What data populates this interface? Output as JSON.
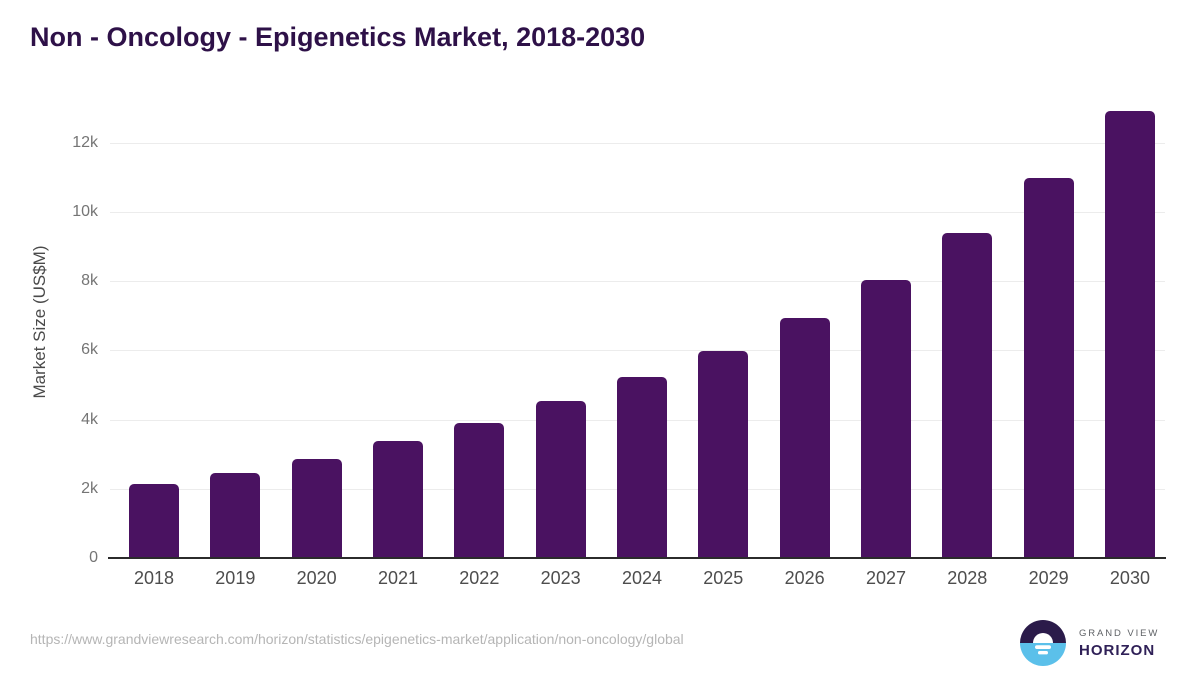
{
  "header": {
    "title": "Non - Oncology - Epigenetics Market, 2018-2030"
  },
  "chart_data": {
    "type": "bar",
    "title": "Non - Oncology - Epigenetics Market, 2018-2030",
    "categories": [
      "2018",
      "2019",
      "2020",
      "2021",
      "2022",
      "2023",
      "2024",
      "2025",
      "2026",
      "2027",
      "2028",
      "2029",
      "2030"
    ],
    "values": [
      2150,
      2470,
      2860,
      3370,
      3910,
      4530,
      5220,
      5990,
      6940,
      8040,
      9380,
      10970,
      12900
    ],
    "xlabel": "",
    "ylabel": "Market Size (US$M)",
    "ylim": [
      0,
      13000
    ],
    "yticks": [
      0,
      2000,
      4000,
      6000,
      8000,
      10000,
      12000
    ],
    "ytick_labels": [
      "0",
      "2k",
      "4k",
      "6k",
      "8k",
      "10k",
      "12k"
    ],
    "grid": "horizontal",
    "legend": "none",
    "bar_color": "#4a1261"
  },
  "footer": {
    "source_url": "https://www.grandviewresearch.com/horizon/statistics/epigenetics-market/application/non-oncology/global",
    "logo": {
      "brand_top": "GRAND VIEW",
      "brand_bottom": "HORIZON",
      "icon": "sunrise-over-water-circle-icon"
    }
  },
  "colors": {
    "bar": "#4a1261",
    "title": "#2e1148",
    "gridline": "#ececec",
    "axis_line": "#2b2b2b",
    "y_tick_labels": "#757575",
    "x_tick_labels": "#4d4d4d",
    "axis_title": "#4a4a4a",
    "source_url": "#b5b5b5",
    "logo_purple": "#2b1b4a",
    "logo_blue": "#5bc0ea",
    "logo_text_purple": "#2f2057",
    "logo_gray": "#5f6266",
    "background": "#ffffff"
  }
}
